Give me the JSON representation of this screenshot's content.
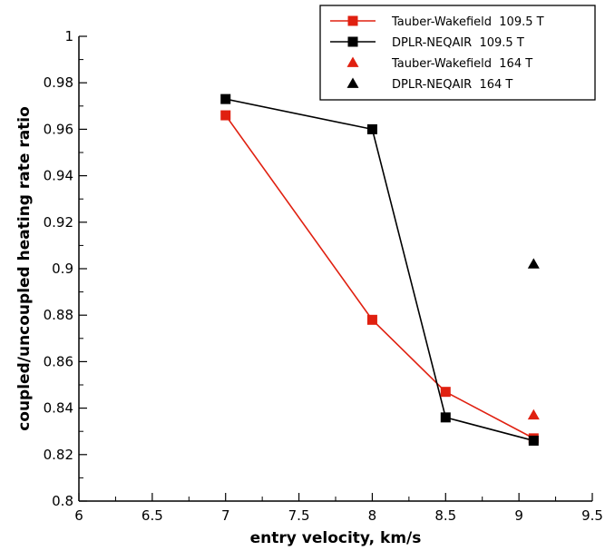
{
  "chart_data": {
    "type": "line",
    "title": "",
    "xlabel": "entry velocity, km/s",
    "ylabel": "coupled/uncoupled heating rate ratio",
    "xlim": [
      6,
      9.5
    ],
    "ylim": [
      0.8,
      1.0
    ],
    "xticks": [
      6,
      6.5,
      7,
      7.5,
      8,
      8.5,
      9,
      9.5
    ],
    "yticks": [
      0.8,
      0.82,
      0.84,
      0.86,
      0.88,
      0.9,
      0.92,
      0.94,
      0.96,
      0.98,
      1
    ],
    "grid": false,
    "legend_position": "top-right",
    "series": [
      {
        "name": "Tauber-Wakefield  109.5 T",
        "color": "#e02010",
        "marker": "square",
        "line": true,
        "x": [
          7,
          8,
          8.5,
          9.1
        ],
        "y": [
          0.966,
          0.878,
          0.847,
          0.827
        ]
      },
      {
        "name": "DPLR-NEQAIR  109.5 T",
        "color": "#000000",
        "marker": "square",
        "line": true,
        "x": [
          7,
          8,
          8.5,
          9.1
        ],
        "y": [
          0.973,
          0.96,
          0.836,
          0.826
        ]
      },
      {
        "name": "Tauber-Wakefield  164 T",
        "color": "#e02010",
        "marker": "triangle",
        "line": false,
        "x": [
          9.1
        ],
        "y": [
          0.837
        ]
      },
      {
        "name": "DPLR-NEQAIR  164 T",
        "color": "#000000",
        "marker": "triangle",
        "line": false,
        "x": [
          9.1
        ],
        "y": [
          0.902
        ]
      }
    ]
  }
}
